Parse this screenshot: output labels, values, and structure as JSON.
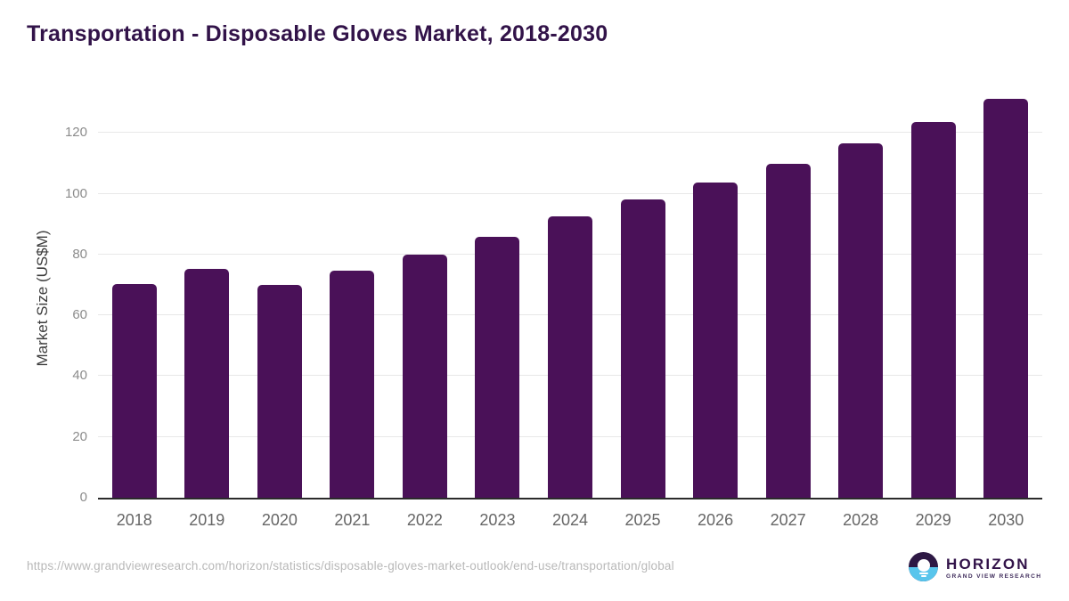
{
  "title": "Transportation - Disposable Gloves Market, 2018-2030",
  "chart_data": {
    "type": "bar",
    "title": "Transportation - Disposable Gloves Market, 2018-2030",
    "categories": [
      "2018",
      "2019",
      "2020",
      "2021",
      "2022",
      "2023",
      "2024",
      "2025",
      "2026",
      "2027",
      "2028",
      "2029",
      "2030"
    ],
    "values": [
      70.3,
      75.4,
      69.9,
      74.8,
      80.1,
      85.8,
      92.7,
      98.0,
      103.6,
      109.8,
      116.6,
      123.5,
      131.3
    ],
    "xlabel": "",
    "ylabel": "Market Size (US$M)",
    "yticks": [
      0,
      20,
      40,
      60,
      80,
      100,
      120
    ],
    "ylim": [
      0,
      136
    ],
    "grid": true,
    "legend": "none",
    "bar_color": "#4a1158",
    "gridline_color": "#e8e8e8",
    "axis_line_color": "#2b2b2b",
    "ytick_color": "#8c8c8c",
    "xtick_color": "#666666",
    "title_color": "#321349"
  },
  "footer": {
    "source_url": "https://www.grandviewresearch.com/horizon/statistics/disposable-gloves-market-outlook/end-use/transportation/global",
    "logo": {
      "name": "HORIZON",
      "subtitle": "GRAND VIEW RESEARCH",
      "purple": "#2d1844",
      "blue": "#58c5ec"
    }
  }
}
